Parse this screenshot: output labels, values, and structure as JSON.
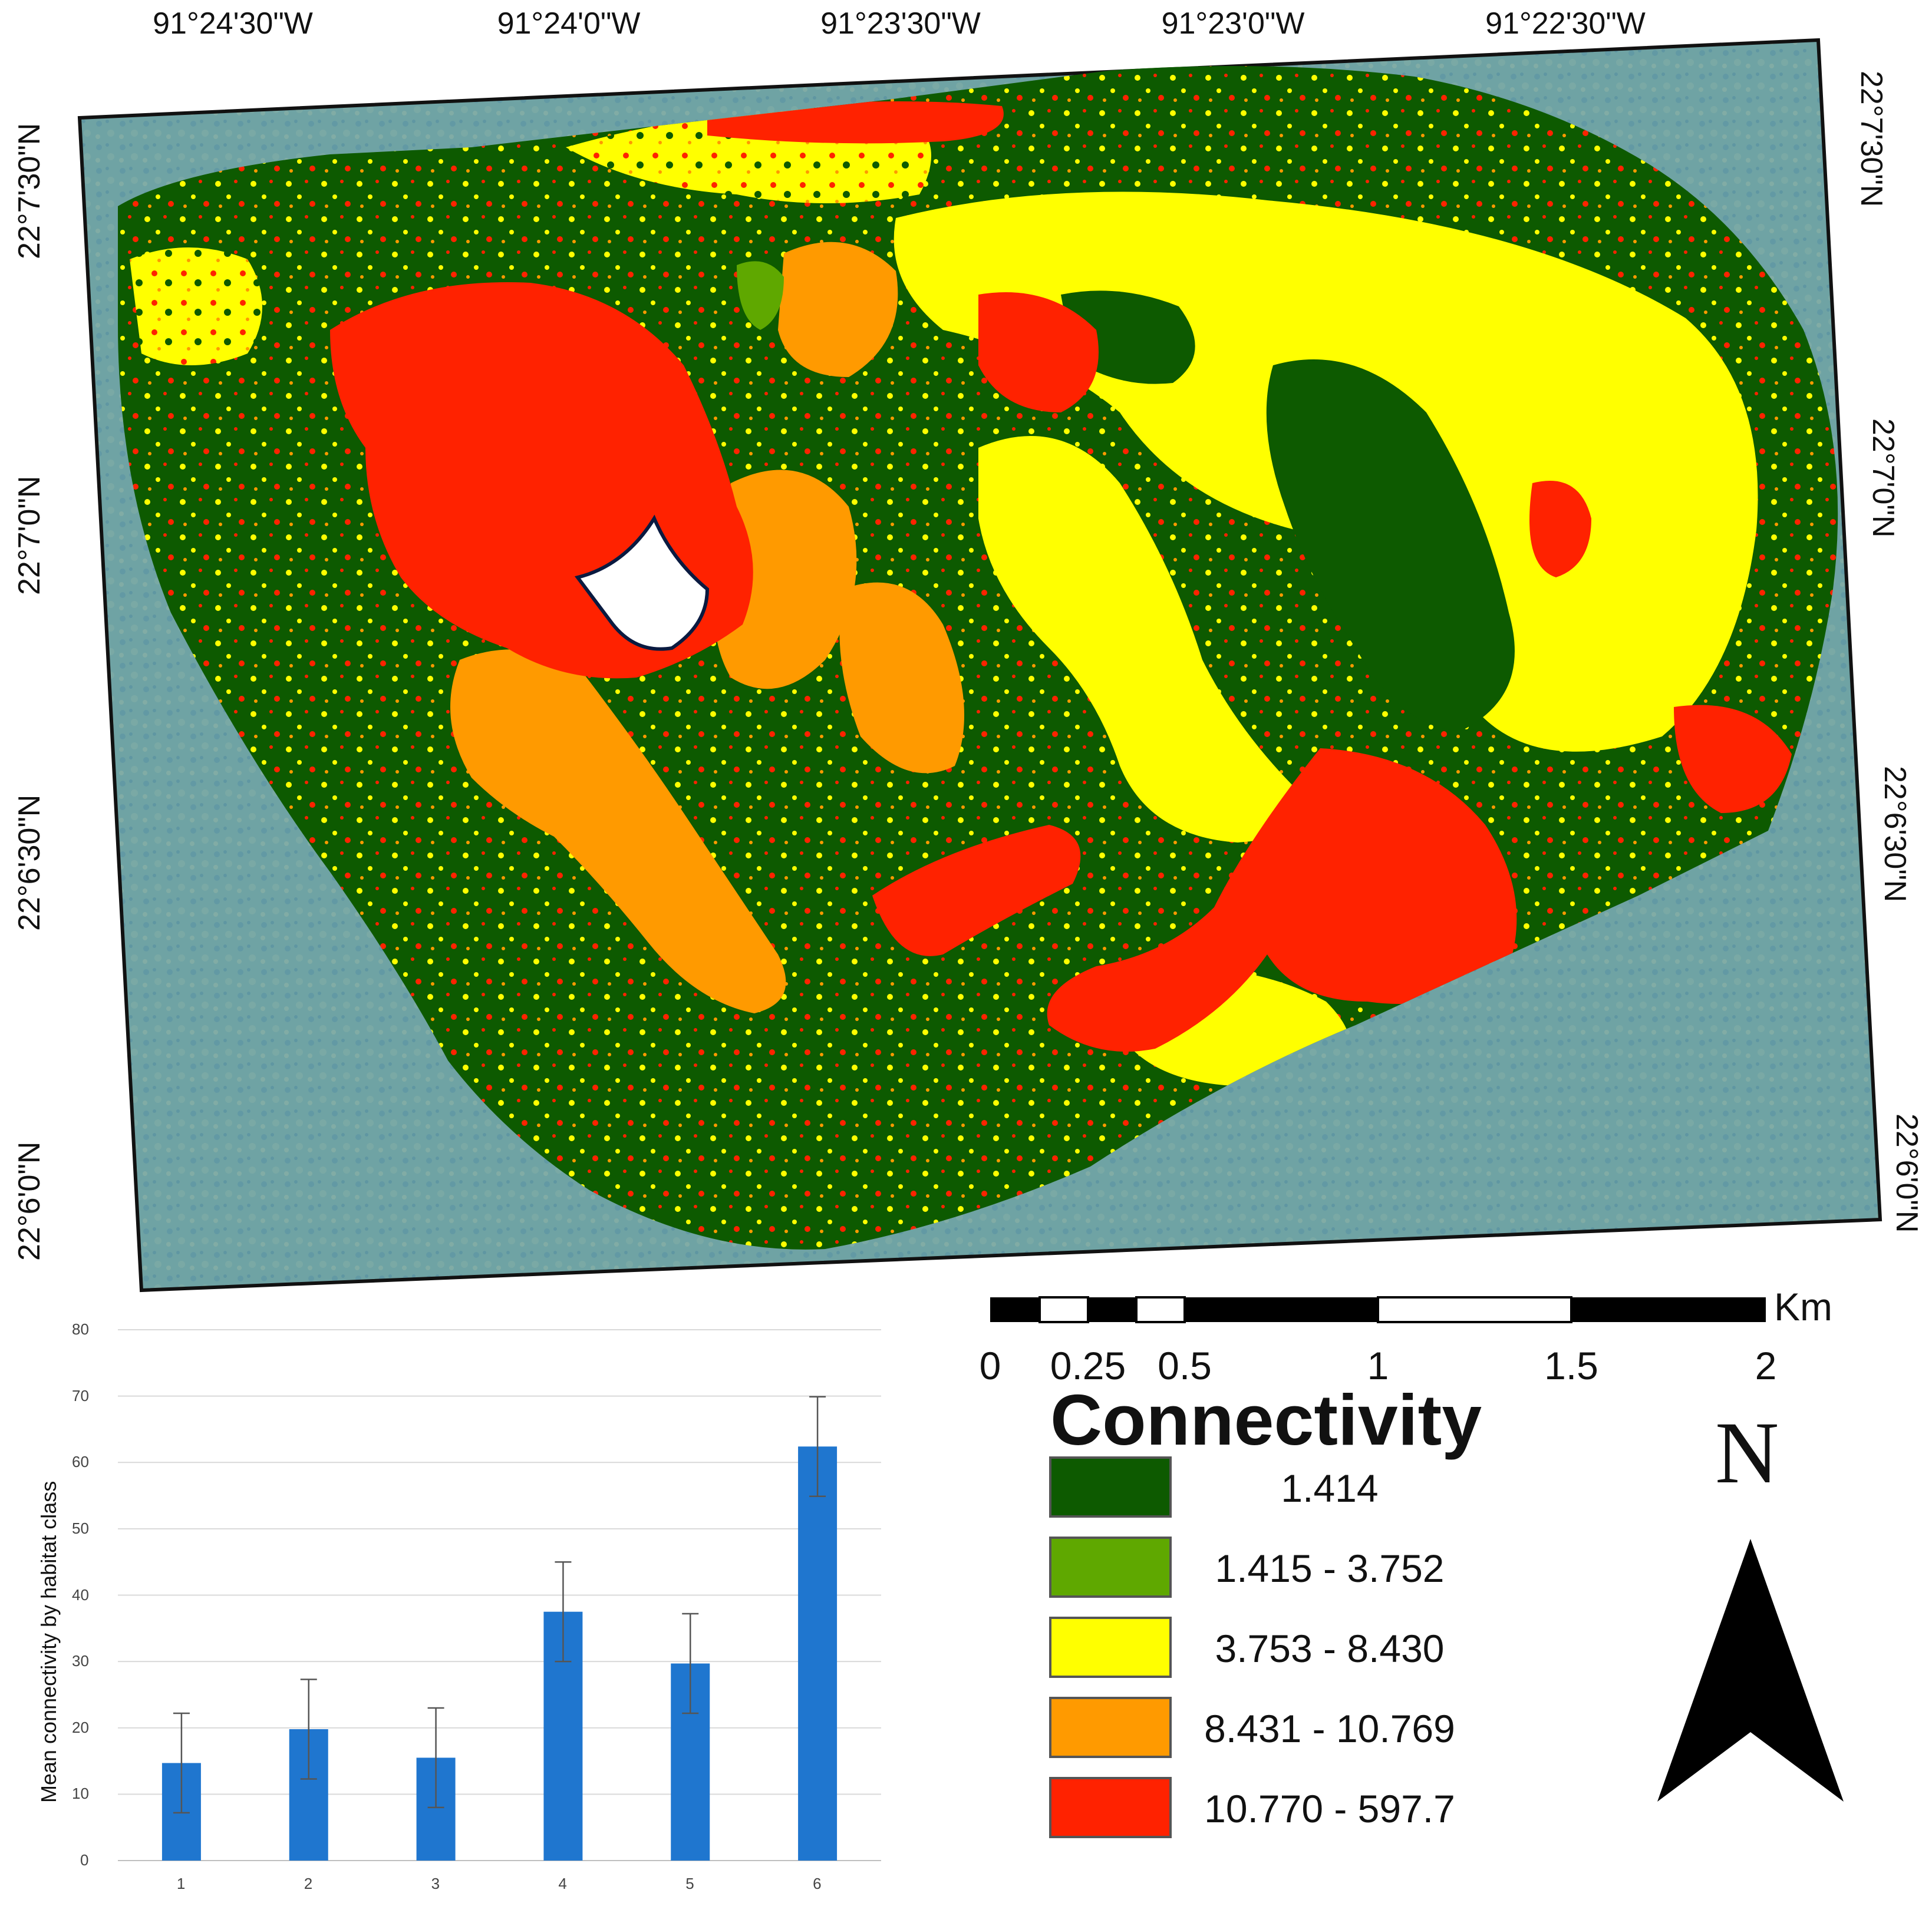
{
  "map": {
    "top_coords": [
      "91°24'30\"W",
      "91°24'0\"W",
      "91°23'30\"W",
      "91°23'0\"W",
      "91°22'30\"W"
    ],
    "left_coords": [
      "22°7'30\"N",
      "22°7'0\"N",
      "22°6'30\"N",
      "22°6'0\"N"
    ],
    "right_coords": [
      "22°7'30\"N",
      "22°7'0\"N",
      "22°6'30\"N",
      "22°6'0\"N"
    ]
  },
  "legend": {
    "title": "Connectivity",
    "items": [
      {
        "label": "1.414",
        "color": "#0d5a00"
      },
      {
        "label": "1.415 - 3.752",
        "color": "#5fa800"
      },
      {
        "label": "3.753 - 8.430",
        "color": "#ffff00"
      },
      {
        "label": "8.431 - 10.769",
        "color": "#ff9a00"
      },
      {
        "label": "10.770 - 597.7",
        "color": "#ff2200"
      }
    ]
  },
  "scalebar": {
    "unit": "Km",
    "labels": [
      "0",
      "0.25",
      "0.5",
      "1",
      "1.5",
      "2"
    ]
  },
  "north": {
    "letter": "N"
  },
  "colors": {
    "water": "#6a9ea0",
    "dark_green": "#0d5a00",
    "light_green": "#5fa800",
    "yellow": "#ffff00",
    "orange": "#ff9a00",
    "red": "#ff2200",
    "bar": "#1f76cf"
  },
  "chart_data": {
    "type": "bar",
    "categories": [
      "1",
      "2",
      "3",
      "4",
      "5",
      "6"
    ],
    "values": [
      14.7,
      19.8,
      15.5,
      37.5,
      29.7,
      62.4
    ],
    "errors": [
      7.5,
      7.5,
      7.5,
      7.5,
      7.5,
      7.5
    ],
    "ylabel": "Mean connectivity by habitat class",
    "xlabel": "",
    "ylim": [
      0,
      80
    ],
    "yticks": [
      "0",
      "10",
      "20",
      "30",
      "40",
      "50",
      "60",
      "70",
      "80"
    ],
    "grid": true
  }
}
